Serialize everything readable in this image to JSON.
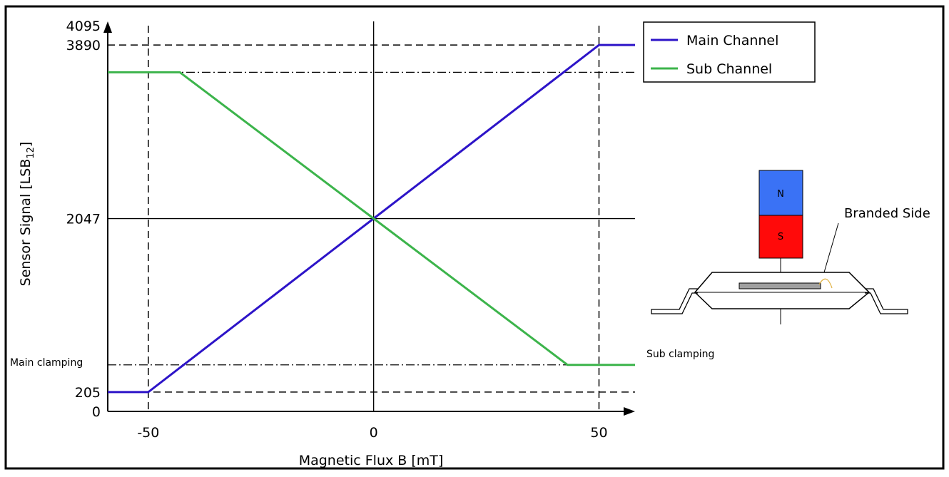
{
  "chart_data": {
    "type": "line",
    "xlabel": "Magnetic Flux B [mT]",
    "ylabel_main": "Sensor Signal [LSB",
    "ylabel_sub": "12",
    "ylabel_end": "]",
    "xlim": [
      -59,
      58
    ],
    "ylim": [
      0,
      4095
    ],
    "x_ticks": [
      {
        "value": -50,
        "label": "-50"
      },
      {
        "value": 0,
        "label": "0"
      },
      {
        "value": 50,
        "label": "50"
      }
    ],
    "y_ticks": [
      {
        "value": 0,
        "label": "0"
      },
      {
        "value": 205,
        "label": "205"
      },
      {
        "value": 2047,
        "label": "2047"
      },
      {
        "value": 3890,
        "label": "3890"
      },
      {
        "value": 4095,
        "label": "4095"
      }
    ],
    "series": [
      {
        "name": "Main Channel",
        "color": "#2d14c8",
        "points": [
          [
            -59,
            205
          ],
          [
            -50,
            205
          ],
          [
            50,
            3890
          ],
          [
            58,
            3890
          ]
        ]
      },
      {
        "name": "Sub Channel",
        "color": "#3cb44b",
        "points": [
          [
            -59,
            3600
          ],
          [
            -43,
            3600
          ],
          [
            43,
            494
          ],
          [
            58,
            494
          ]
        ]
      }
    ],
    "dashed_vertical": [
      -50,
      50
    ],
    "dashed_horizontal": [
      205,
      3890
    ],
    "dashdot_horizontal": [
      494,
      3600
    ],
    "solid_crosshair": {
      "x": 0,
      "y": 2047
    },
    "annotations": {
      "main_clamping": "Main clamping",
      "sub_clamping": "Sub clamping"
    },
    "legend_position": "top-right, outside plot"
  },
  "illustration": {
    "north_label": "N",
    "south_label": "S",
    "branded_side_label": "Branded Side",
    "north_color": "#3a72f5",
    "south_color": "#ff0a0a"
  }
}
